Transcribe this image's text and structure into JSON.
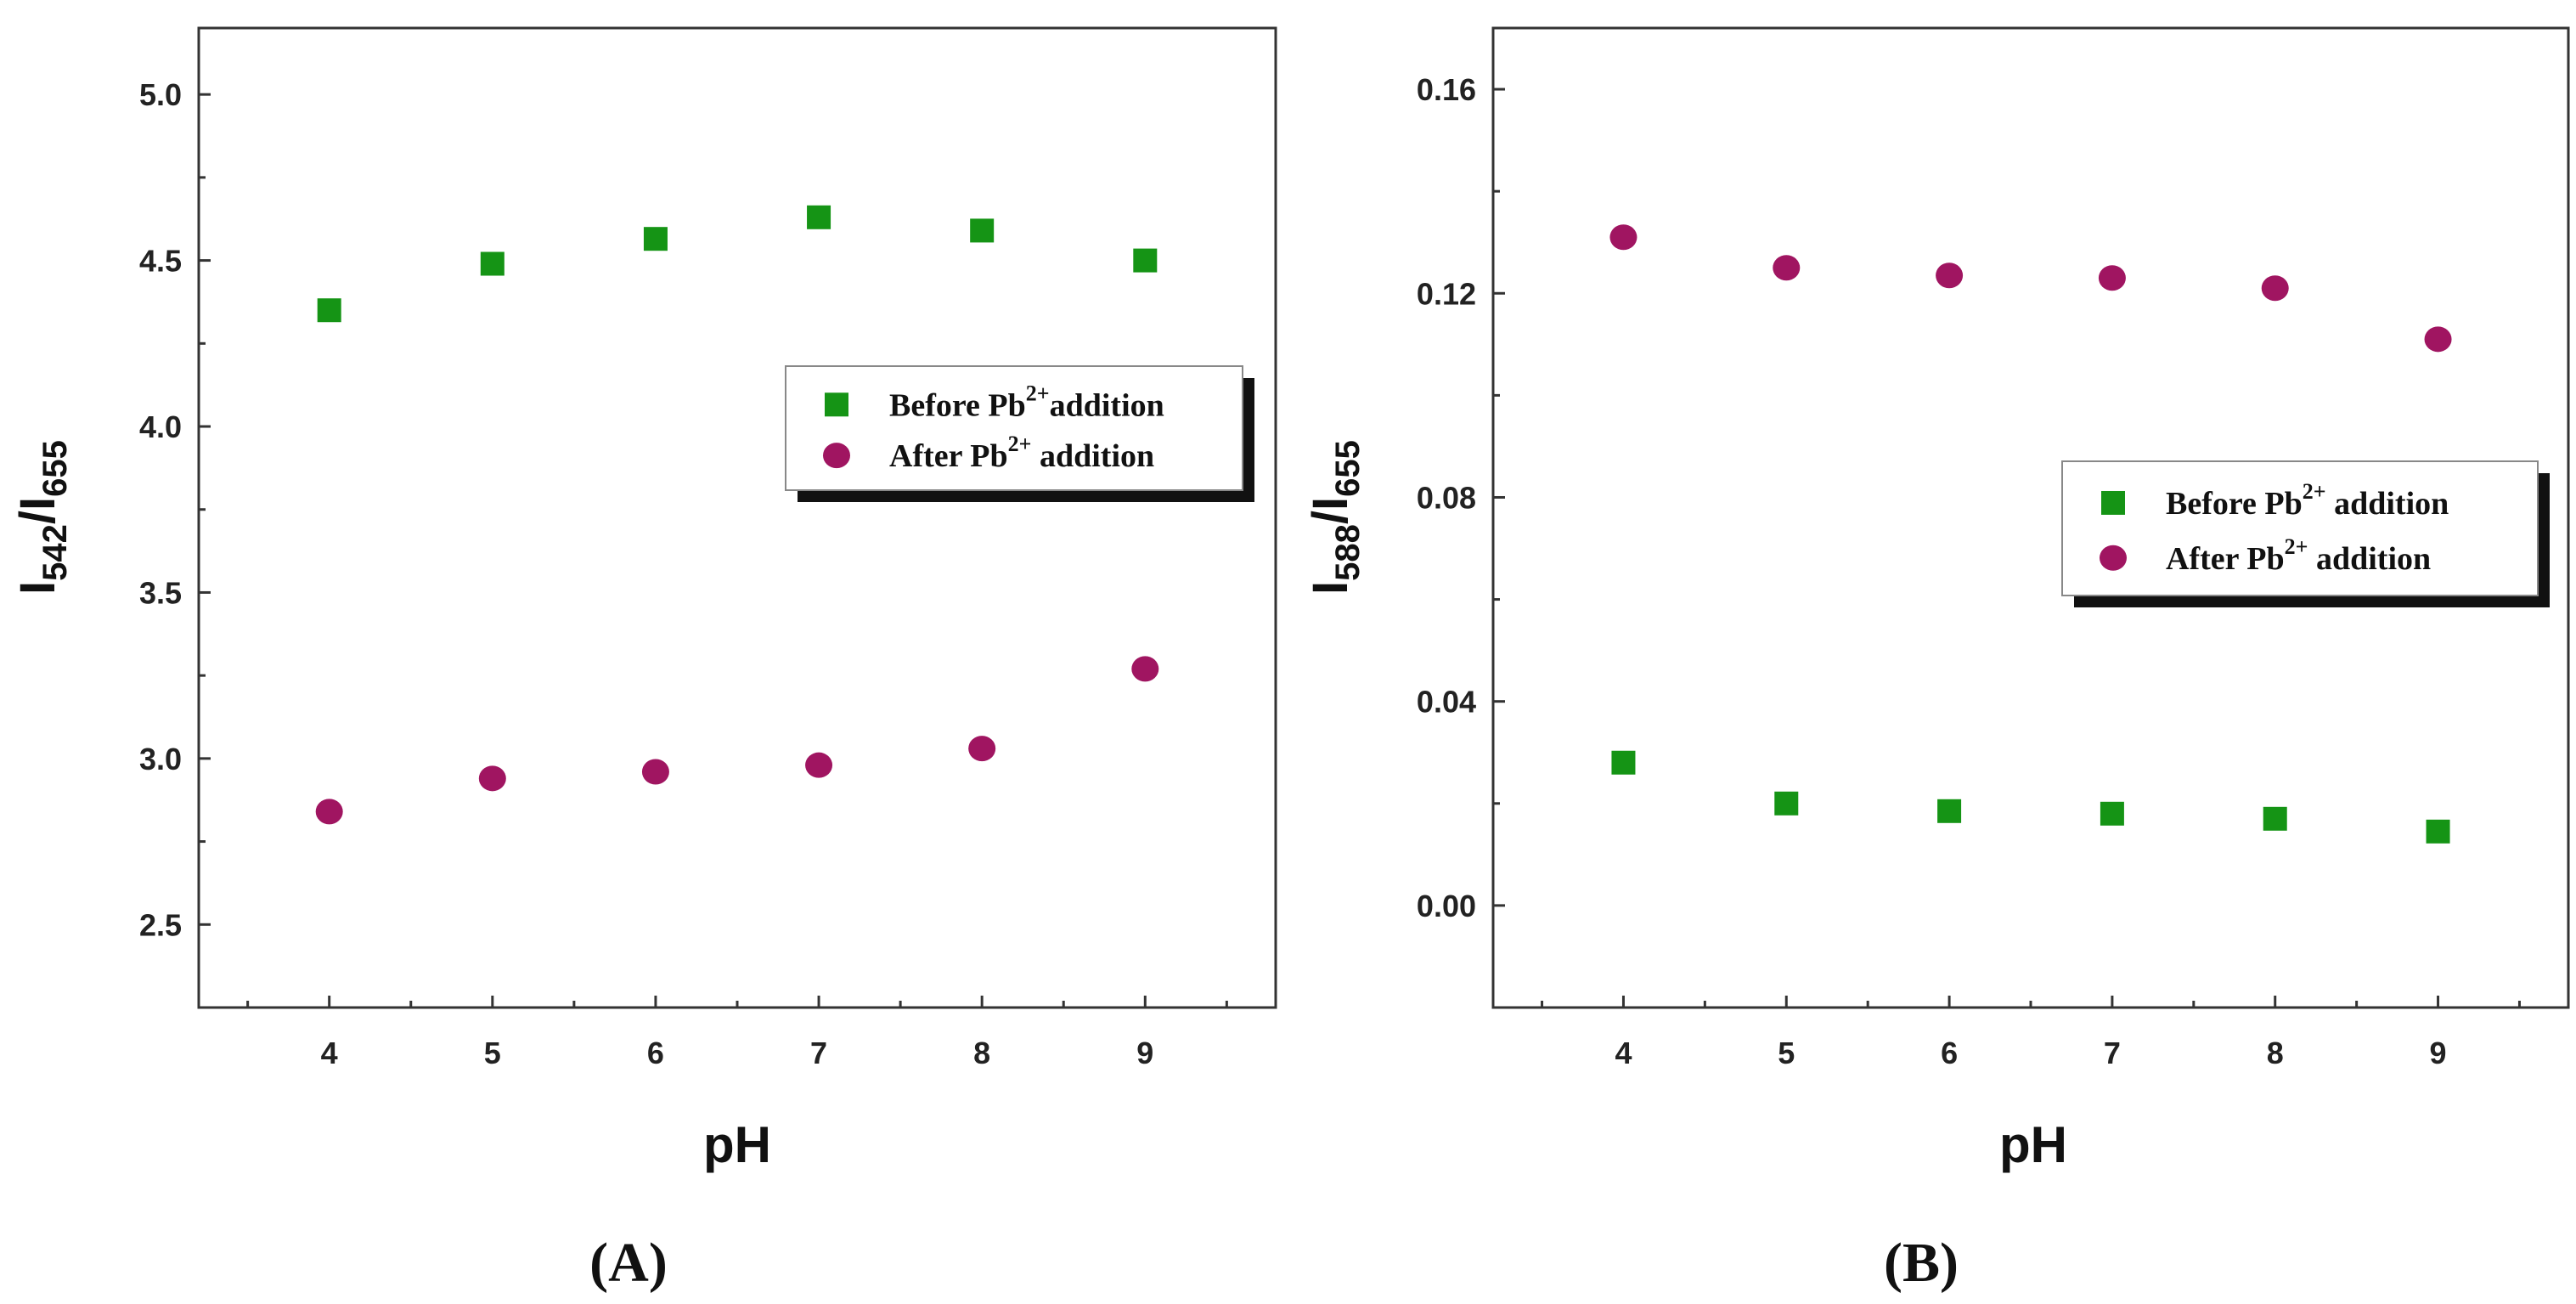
{
  "chart_data": [
    {
      "type": "scatter",
      "panel_label": "A",
      "xlabel": "pH",
      "ylabel": {
        "main": "I",
        "sub1": "542",
        "slash": "/",
        "main2": "I",
        "sub2": "655"
      },
      "x": [
        4,
        5,
        6,
        7,
        8,
        9
      ],
      "xlim": [
        3.2,
        9.8
      ],
      "xticks": [
        "4",
        "5",
        "6",
        "7",
        "8",
        "9"
      ],
      "ylim": [
        2.25,
        5.2
      ],
      "yticks": [
        "2.5",
        "3.0",
        "3.5",
        "4.0",
        "4.5",
        "5.0"
      ],
      "legend_position": "right",
      "series": [
        {
          "name": "Before Pb2+addition",
          "legend": {
            "text": "Before Pb",
            "sup": "2+",
            "suffix": "addition"
          },
          "marker": "square",
          "color": "#159415",
          "values": [
            4.35,
            4.49,
            4.565,
            4.63,
            4.59,
            4.5
          ]
        },
        {
          "name": "After Pb2+ addition",
          "legend": {
            "text": "After Pb",
            "sup": "2+",
            "suffix": " addition"
          },
          "marker": "circle",
          "color": "#a01561",
          "values": [
            2.84,
            2.94,
            2.96,
            2.98,
            3.03,
            3.27
          ]
        }
      ]
    },
    {
      "type": "scatter",
      "panel_label": "B",
      "xlabel": "pH",
      "ylabel": {
        "main": "I",
        "sub1": "588",
        "slash": "/",
        "main2": "I",
        "sub2": "655"
      },
      "x": [
        4,
        5,
        6,
        7,
        8,
        9
      ],
      "xlim": [
        3.2,
        9.8
      ],
      "xticks": [
        "4",
        "5",
        "6",
        "7",
        "8",
        "9"
      ],
      "ylim": [
        -0.02,
        0.172
      ],
      "yticks": [
        "0.00",
        "0.04",
        "0.08",
        "0.12",
        "0.16"
      ],
      "legend_position": "right",
      "series": [
        {
          "name": "Before Pb2+ addition",
          "legend": {
            "text": "Before Pb",
            "sup": "2+",
            "suffix": " addition"
          },
          "marker": "square",
          "color": "#159415",
          "values": [
            0.028,
            0.02,
            0.0185,
            0.018,
            0.017,
            0.0145
          ]
        },
        {
          "name": "After Pb2+ addition",
          "legend": {
            "text": "After Pb",
            "sup": "2+",
            "suffix": " addition"
          },
          "marker": "circle",
          "color": "#a01561",
          "values": [
            0.131,
            0.125,
            0.1235,
            0.123,
            0.121,
            0.111
          ]
        }
      ]
    }
  ]
}
